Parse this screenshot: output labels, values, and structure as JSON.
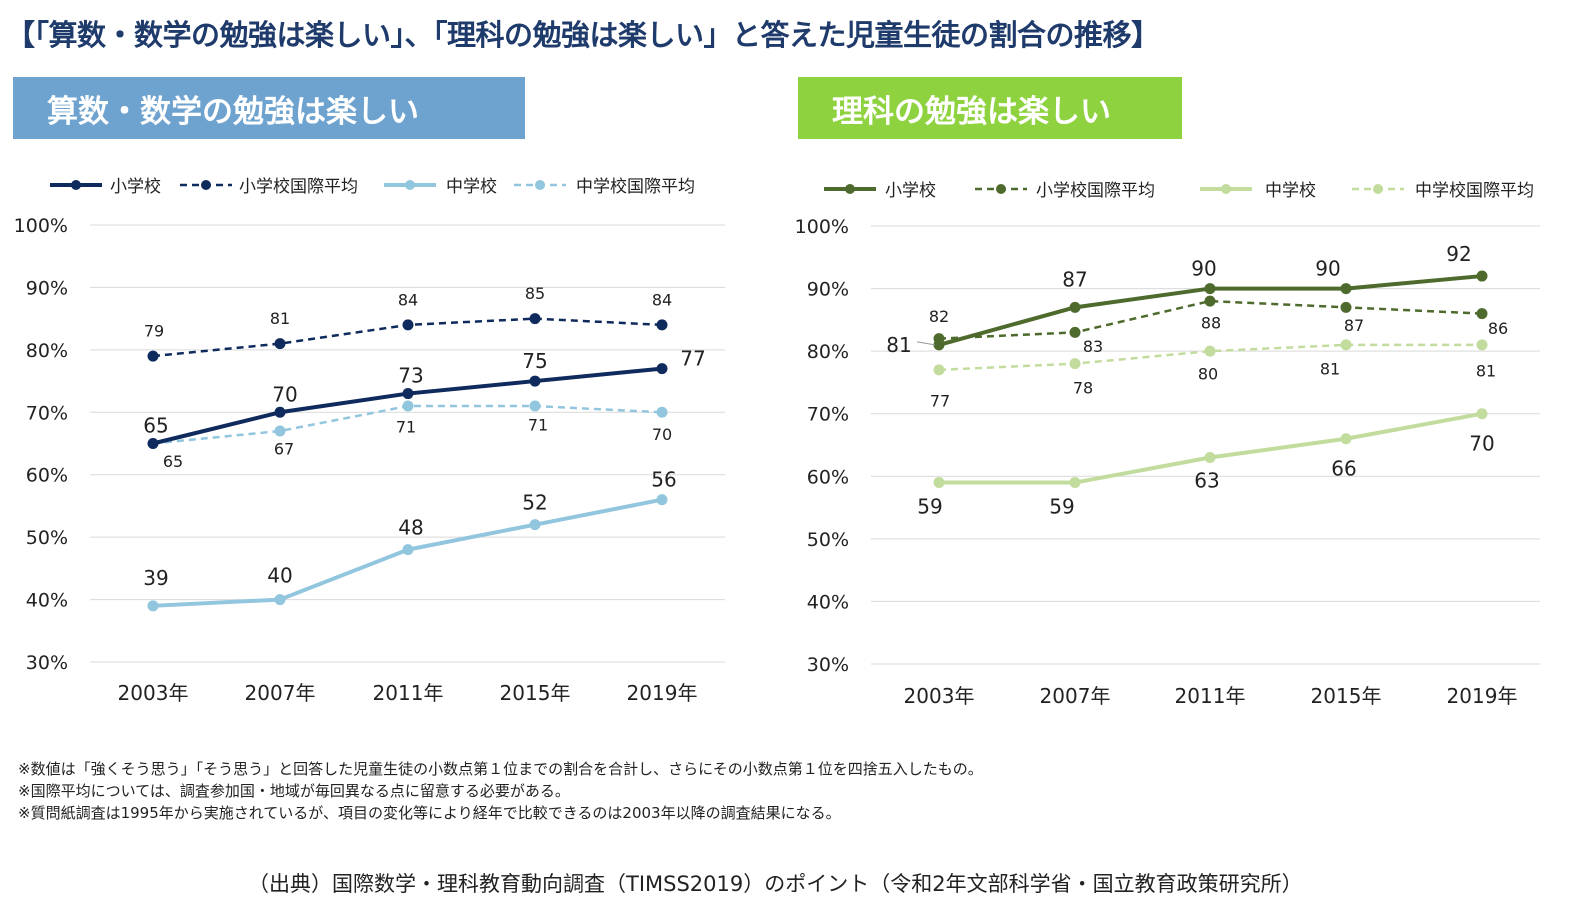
{
  "page_title": "【「算数・数学の勉強は楽しい」、「理科の勉強は楽しい」と答えた児童生徒の割合の推移】",
  "colors": {
    "math_banner": "#6fa3cf",
    "science_banner": "#8ed33f",
    "math_elementary": "#0f2a5c",
    "math_junior": "#92c6de",
    "science_elementary": "#4e6b2d",
    "science_junior": "#c2dc9d"
  },
  "chart_data": [
    {
      "type": "line",
      "banner": "算数・数学の勉強は楽しい",
      "categories": [
        "2003年",
        "2007年",
        "2011年",
        "2015年",
        "2019年"
      ],
      "ylim": [
        30,
        100
      ],
      "yticks": [
        "30%",
        "40%",
        "50%",
        "60%",
        "70%",
        "80%",
        "90%",
        "100%"
      ],
      "grid": true,
      "legend_position": "top",
      "series": [
        {
          "name": "小学校",
          "values": [
            65,
            70,
            73,
            75,
            77
          ],
          "color": "#0f2a5c",
          "dashed": false
        },
        {
          "name": "小学校国際平均",
          "values": [
            79,
            81,
            84,
            85,
            84
          ],
          "color": "#0f2a5c",
          "dashed": true
        },
        {
          "name": "中学校",
          "values": [
            39,
            40,
            48,
            52,
            56
          ],
          "color": "#92c6de",
          "dashed": false
        },
        {
          "name": "中学校国際平均",
          "values": [
            65,
            67,
            71,
            71,
            70
          ],
          "color": "#92c6de",
          "dashed": true
        }
      ]
    },
    {
      "type": "line",
      "banner": "理科の勉強は楽しい",
      "categories": [
        "2003年",
        "2007年",
        "2011年",
        "2015年",
        "2019年"
      ],
      "ylim": [
        30,
        100
      ],
      "yticks": [
        "30%",
        "40%",
        "50%",
        "60%",
        "70%",
        "80%",
        "90%",
        "100%"
      ],
      "grid": true,
      "legend_position": "top",
      "series": [
        {
          "name": "小学校",
          "values": [
            81,
            87,
            90,
            90,
            92
          ],
          "color": "#4e6b2d",
          "dashed": false
        },
        {
          "name": "小学校国際平均",
          "values": [
            82,
            83,
            88,
            87,
            86
          ],
          "color": "#4e6b2d",
          "dashed": true
        },
        {
          "name": "中学校",
          "values": [
            59,
            59,
            63,
            66,
            70
          ],
          "color": "#c2dc9d",
          "dashed": false
        },
        {
          "name": "中学校国際平均",
          "values": [
            77,
            78,
            80,
            81,
            81
          ],
          "color": "#c2dc9d",
          "dashed": true
        }
      ]
    }
  ],
  "notes": [
    "※数値は「強くそう思う」「そう思う」と回答した児童生徒の小数点第１位までの割合を合計し、さらにその小数点第１位を四捨五入したもの。",
    "※国際平均については、調査参加国・地域が毎回異なる点に留意する必要がある。",
    "※質問紙調査は1995年から実施されているが、項目の変化等により経年で比較できるのは2003年以降の調査結果になる。"
  ],
  "source": "（出典）国際数学・理科教育動向調査（TIMSS2019）のポイント（令和2年文部科学省・国立教育政策研究所）"
}
